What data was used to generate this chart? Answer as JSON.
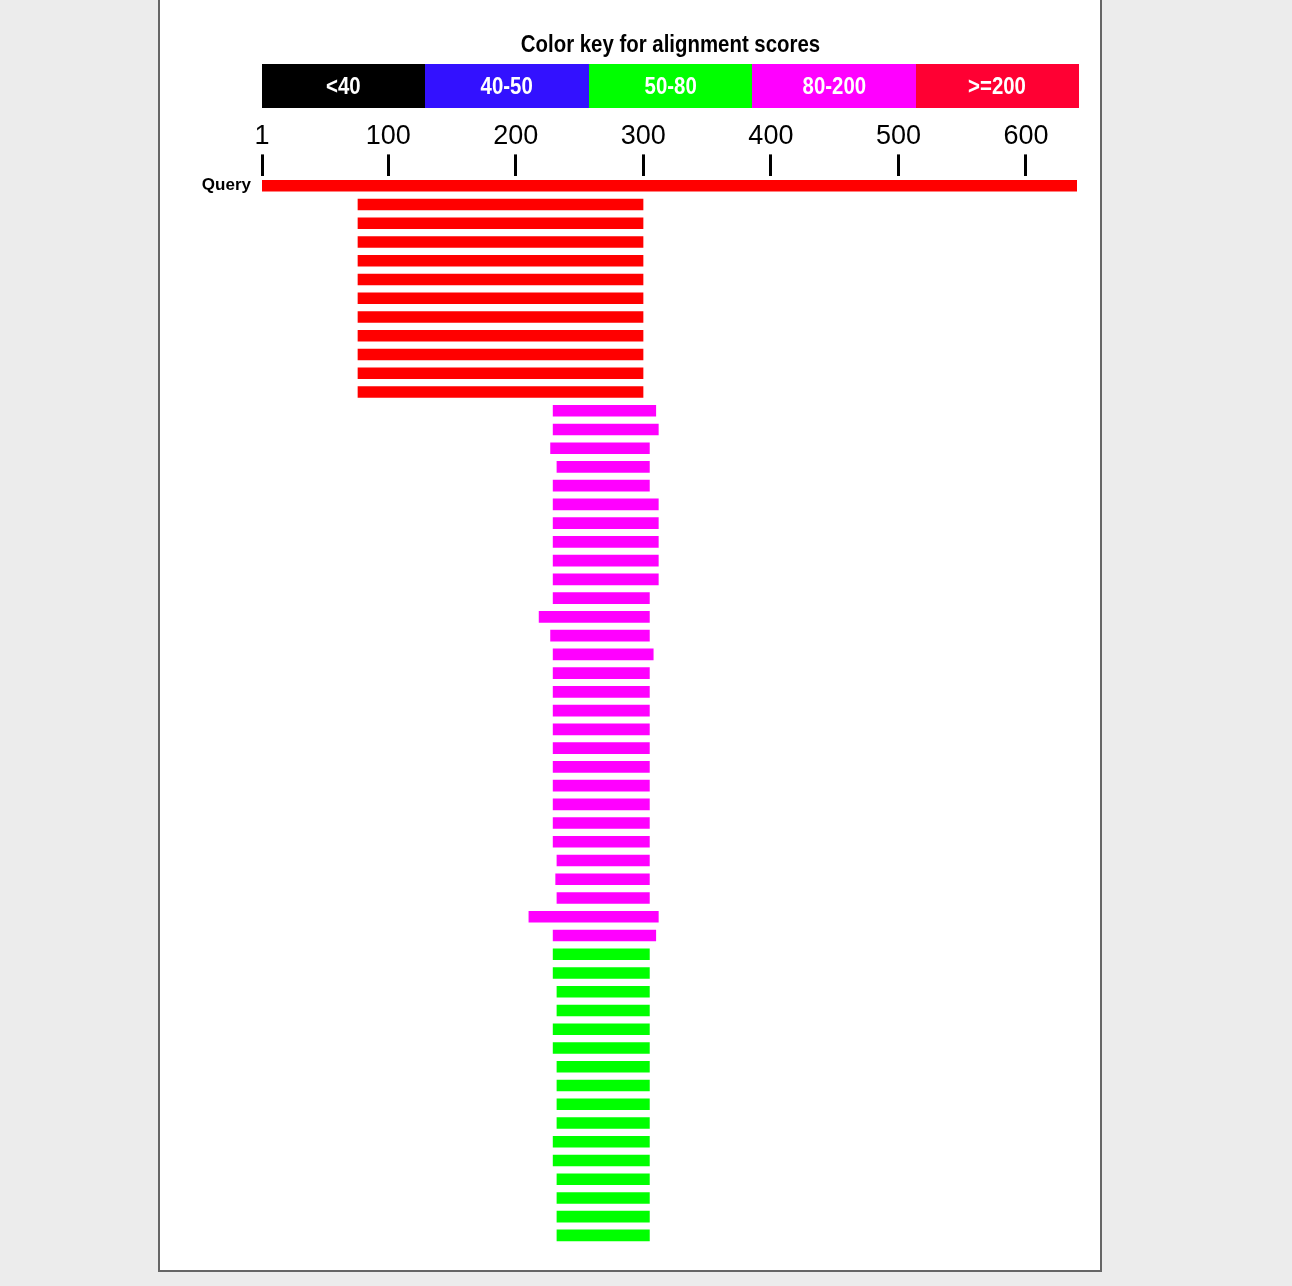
{
  "chart_data": [
    {
      "type": "other",
      "title": "Color key for alignment scores",
      "categories": [
        "<40",
        "40-50",
        "50-80",
        "80-200",
        ">=200"
      ],
      "colors": [
        "#000000",
        "#3311ff",
        "#00ff00",
        "#ff00ff",
        "#ff0033"
      ]
    },
    {
      "type": "bar",
      "orientation": "horizontal",
      "grid": false,
      "categories": [
        "Query",
        null,
        null,
        null,
        null,
        null,
        null,
        null,
        null,
        null,
        null,
        null,
        null,
        null,
        null,
        null,
        null,
        null,
        null,
        null,
        null,
        null,
        null,
        null,
        null,
        null,
        null,
        null,
        null,
        null,
        null,
        null,
        null,
        null,
        null,
        null,
        null,
        null,
        null,
        null,
        null,
        null,
        null,
        null,
        null,
        null,
        null,
        null,
        null,
        null,
        null,
        null,
        null,
        null,
        null,
        null,
        null
      ],
      "xlim": [
        1,
        640
      ],
      "xticks": [
        1,
        100,
        200,
        300,
        400,
        500,
        600
      ],
      "series": [
        {
          "values": [
            639,
            224,
            224,
            224,
            224,
            224,
            224,
            224,
            224,
            224,
            224,
            224,
            81,
            83,
            78,
            73,
            76,
            83,
            83,
            83,
            83,
            83,
            76,
            87,
            78,
            79,
            76,
            76,
            76,
            76,
            76,
            76,
            76,
            76,
            76,
            76,
            73,
            74,
            73,
            102,
            81,
            76,
            76,
            73,
            73,
            76,
            76,
            73,
            73,
            73,
            73,
            76,
            76,
            73,
            73,
            73,
            73
          ],
          "base": [
            1,
            76,
            76,
            76,
            76,
            76,
            76,
            76,
            76,
            76,
            76,
            76,
            229,
            229,
            227,
            232,
            229,
            229,
            229,
            229,
            229,
            229,
            229,
            218,
            227,
            229,
            229,
            229,
            229,
            229,
            229,
            229,
            229,
            229,
            229,
            229,
            232,
            231,
            232,
            210,
            229,
            229,
            229,
            232,
            232,
            229,
            229,
            232,
            232,
            232,
            232,
            229,
            229,
            232,
            232,
            232,
            232
          ],
          "colors": [
            "#ff0000",
            "#ff0000",
            "#ff0000",
            "#ff0000",
            "#ff0000",
            "#ff0000",
            "#ff0000",
            "#ff0000",
            "#ff0000",
            "#ff0000",
            "#ff0000",
            "#ff0000",
            "#ff00ff",
            "#ff00ff",
            "#ff00ff",
            "#ff00ff",
            "#ff00ff",
            "#ff00ff",
            "#ff00ff",
            "#ff00ff",
            "#ff00ff",
            "#ff00ff",
            "#ff00ff",
            "#ff00ff",
            "#ff00ff",
            "#ff00ff",
            "#ff00ff",
            "#ff00ff",
            "#ff00ff",
            "#ff00ff",
            "#ff00ff",
            "#ff00ff",
            "#ff00ff",
            "#ff00ff",
            "#ff00ff",
            "#ff00ff",
            "#ff00ff",
            "#ff00ff",
            "#ff00ff",
            "#ff00ff",
            "#ff00ff",
            "#00ff00",
            "#00ff00",
            "#00ff00",
            "#00ff00",
            "#00ff00",
            "#00ff00",
            "#00ff00",
            "#00ff00",
            "#00ff00",
            "#00ff00",
            "#00ff00",
            "#00ff00",
            "#00ff00",
            "#00ff00",
            "#00ff00",
            "#00ff00"
          ]
        }
      ]
    }
  ]
}
